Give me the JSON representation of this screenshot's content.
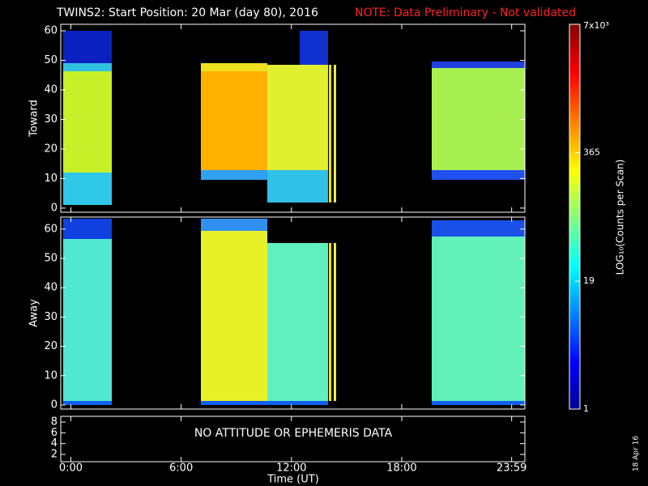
{
  "title": "TWINS2: Start Position: 20 Mar (day  80), 2016",
  "note": "NOTE: Data Preliminary - Not validated",
  "date_stamp": "18 Apr 16",
  "chart_data": [
    {
      "type": "heatmap",
      "ylabel": "Toward",
      "ylim": [
        -1.4,
        62.2
      ],
      "yticks": [
        0,
        10,
        20,
        30,
        40,
        50,
        60
      ]
    },
    {
      "type": "heatmap",
      "ylabel": "Away",
      "ylim": [
        -1.4,
        64.1
      ],
      "yticks": [
        0,
        10,
        20,
        30,
        40,
        50,
        60
      ]
    },
    {
      "type": "status",
      "message": "NO ATTITUDE OR EPHEMERIS DATA",
      "ylim": [
        0.65,
        9.05
      ],
      "yticks": [
        2,
        4,
        6,
        8
      ],
      "xlabel": "Time (UT)",
      "xlim": [
        -0.55,
        24.7
      ],
      "xticks": [
        {
          "value": 0,
          "label": "0:00"
        },
        {
          "value": 6,
          "label": "6:00"
        },
        {
          "value": 12,
          "label": "12:00"
        },
        {
          "value": 18,
          "label": "18:00"
        },
        {
          "value": 23.98,
          "label": "23:59"
        }
      ]
    }
  ],
  "colorbar": {
    "label": "LOG₁₀(Counts per Scan)",
    "scale": "log",
    "lim": [
      1,
      7000
    ],
    "ticks": [
      1,
      19,
      365,
      {
        "value": 7000,
        "label": "7x10³"
      }
    ]
  }
}
